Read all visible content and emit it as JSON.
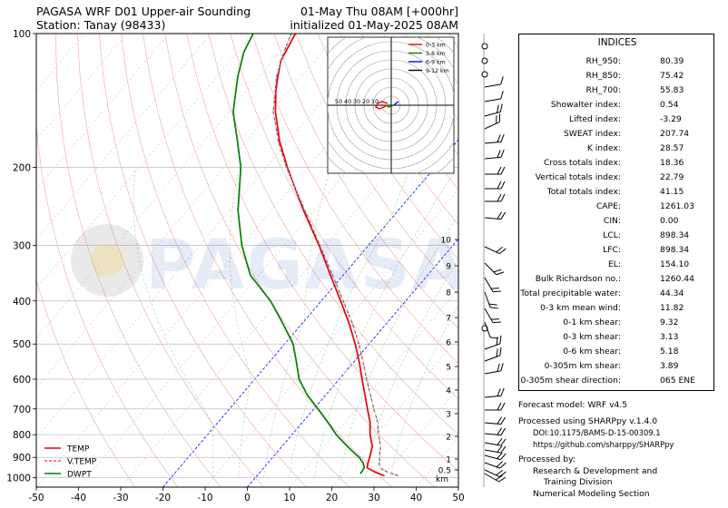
{
  "header": {
    "title_line1": "PAGASA WRF D01 Upper-air Sounding",
    "title_line2": "Station: Tanay (98433)",
    "valid_line": "01-May Thu 08AM [+000hr]",
    "init_line": "initialized 01-May-2025 08AM"
  },
  "watermark": "PAGASA",
  "colors": {
    "temp": "#e8000b",
    "dwpt": "#008000",
    "vtemp": "#555555",
    "isotherm": "#0000ff",
    "hodo_0_3": "#e8000b",
    "hodo_3_6": "#008000",
    "hodo_6_9": "#0000ff",
    "hodo_9_12": "#000000"
  },
  "chart_data": {
    "type": "line",
    "diagram": "skew-t log-p",
    "xlabel": "",
    "ylabel": "",
    "xlim": [
      -50,
      50
    ],
    "ylim": [
      1050,
      100
    ],
    "x_ticks": [
      -50,
      -40,
      -30,
      -20,
      -10,
      0,
      10,
      20,
      30,
      40,
      50
    ],
    "y_ticks": [
      1000,
      900,
      800,
      700,
      600,
      500,
      400,
      300,
      200,
      100
    ],
    "legend": {
      "placement": "bottom-left",
      "entries": [
        "TEMP",
        "V.TEMP",
        "DWPT"
      ]
    },
    "series": [
      {
        "name": "TEMP",
        "pressure": [
          990,
          970,
          950,
          930,
          900,
          875,
          850,
          800,
          750,
          700,
          650,
          600,
          550,
          500,
          450,
          400,
          350,
          300,
          250,
          200,
          175,
          150,
          135,
          125,
          115,
          100
        ],
        "temperature": [
          30.2,
          27.0,
          24.5,
          23.8,
          23.0,
          22.2,
          21.4,
          18.5,
          16.0,
          12.7,
          9.2,
          5.4,
          1.4,
          -3.3,
          -8.8,
          -15.4,
          -23.0,
          -31.7,
          -42.5,
          -55.0,
          -62.0,
          -69.0,
          -73.0,
          -75.5,
          -78.0,
          -80.0
        ]
      },
      {
        "name": "V.TEMP",
        "pressure": [
          990,
          970,
          950,
          930,
          900,
          875,
          850,
          800,
          750,
          700,
          650,
          600,
          550,
          500,
          450,
          400,
          350,
          300,
          250,
          200,
          175,
          150,
          125,
          110,
          100
        ],
        "temperature": [
          33.5,
          30.0,
          27.5,
          26.5,
          25.4,
          24.3,
          23.4,
          20.5,
          17.8,
          14.2,
          10.5,
          6.5,
          2.3,
          -2.4,
          -8.0,
          -14.8,
          -22.5,
          -31.5,
          -42.2,
          -55.2,
          -62.3,
          -69.5,
          -75.8,
          -79.0,
          -81.0
        ]
      },
      {
        "name": "DWPT",
        "pressure": [
          980,
          950,
          925,
          900,
          875,
          850,
          800,
          750,
          700,
          650,
          600,
          550,
          500,
          450,
          400,
          350,
          300,
          250,
          200,
          175,
          150,
          125,
          110,
          100
        ],
        "temperature": [
          24.1,
          23.8,
          22.5,
          20.5,
          18.0,
          15.5,
          10.5,
          6.0,
          1.0,
          -4.5,
          -9.5,
          -13.5,
          -18.0,
          -24.5,
          -32.0,
          -42.0,
          -50.0,
          -58.0,
          -66.0,
          -72.0,
          -79.0,
          -85.0,
          -88.5,
          -90.0
        ]
      }
    ]
  },
  "height_axis": {
    "labels": [
      "10",
      "9",
      "8",
      "7",
      "6",
      "5",
      "4",
      "3",
      "2",
      "1",
      "0.5"
    ],
    "unit": "km"
  },
  "hodograph": {
    "ring_labels": [
      "50",
      "40",
      "30",
      "20",
      "10"
    ],
    "legend": [
      "0-3 km",
      "3-6 km",
      "6-9 km",
      "9-12 km"
    ]
  },
  "indices": {
    "title": "INDICES",
    "rows": [
      {
        "label": "RH_950:",
        "value": "80.39"
      },
      {
        "label": "RH_850:",
        "value": "75.42"
      },
      {
        "label": "RH_700:",
        "value": "55.83"
      },
      {
        "label": "Showalter index:",
        "value": "0.54"
      },
      {
        "label": "Lifted index:",
        "value": "-3.29"
      },
      {
        "label": "SWEAT index:",
        "value": "207.74"
      },
      {
        "label": "K index:",
        "value": "28.57"
      },
      {
        "label": "Cross totals index:",
        "value": "18.36"
      },
      {
        "label": "Vertical totals index:",
        "value": "22.79"
      },
      {
        "label": "Total totals index:",
        "value": "41.15"
      },
      {
        "label": "CAPE:",
        "value": "1261.03"
      },
      {
        "label": "CIN:",
        "value": "0.00"
      },
      {
        "label": "LCL:",
        "value": "898.34"
      },
      {
        "label": "LFC:",
        "value": "898.34"
      },
      {
        "label": "EL:",
        "value": "154.10"
      },
      {
        "label": "Bulk Richardson no.:",
        "value": "1260.44"
      },
      {
        "label": "Total precipitable water:",
        "value": "44.34"
      },
      {
        "label": "0-3 km mean wind:",
        "value": "11.82"
      },
      {
        "label": "0-1 km shear:",
        "value": "9.32"
      },
      {
        "label": "0-3 km shear:",
        "value": "3.13"
      },
      {
        "label": "0-6 km shear:",
        "value": "5.18"
      },
      {
        "label": "0-305m km shear:",
        "value": "3.89"
      },
      {
        "label": "0-305m shear direction:",
        "value": "065 ENE"
      }
    ]
  },
  "footer": {
    "forecast_model": "Forecast model: WRF v4.5",
    "processed_using": "Processed using SHARPpy v.1.4.0",
    "doi": "DOI:10.1175/BAMS-D-15-00309.1",
    "url": "https://github.com/sharppy/SHARPpy",
    "processed_by": "Processed by:",
    "org_line1": "Research & Development and",
    "org_line2": "Training Division",
    "org_line3": "Numerical Modeling Section"
  }
}
